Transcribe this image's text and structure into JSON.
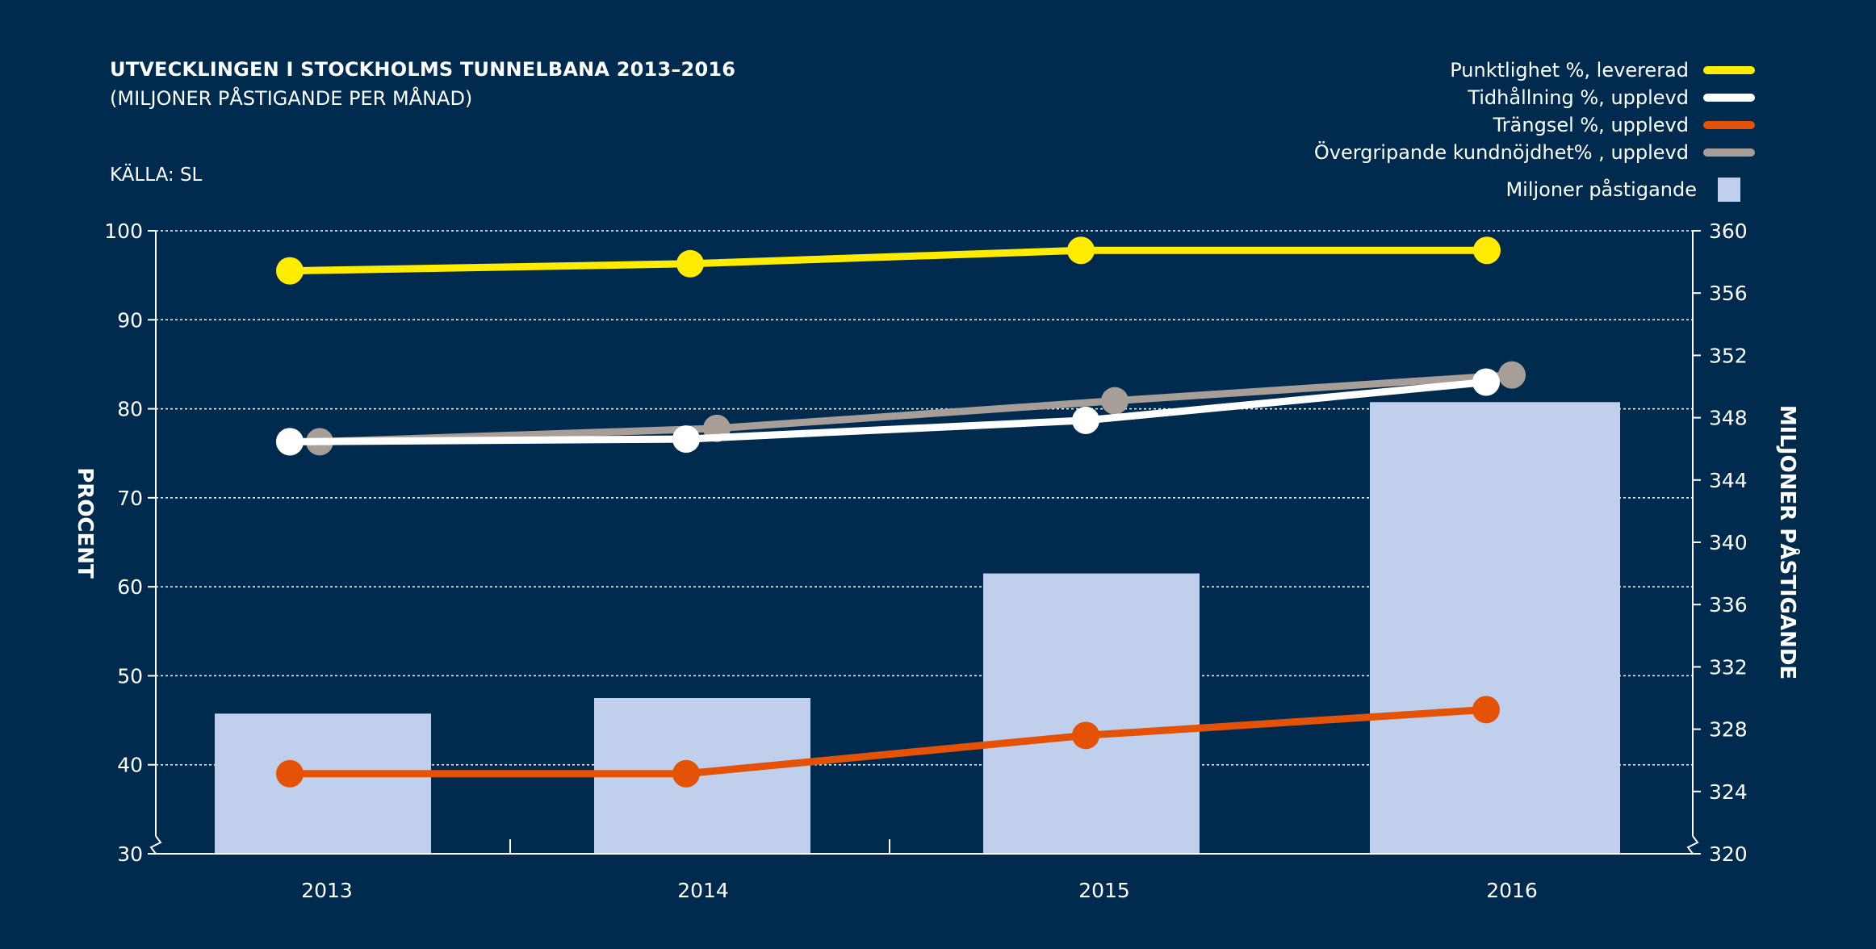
{
  "chart_data": {
    "type": "bar+line",
    "title": "UTVECKLINGEN I STOCKHOLMS TUNNELBANA 2013–2016",
    "subtitle": "(MILJONER PÅSTIGANDE PER MÅNAD)",
    "source": "KÄLLA: SL",
    "categories": [
      "2013",
      "2014",
      "2015",
      "2016"
    ],
    "y_left": {
      "label": "PROCENT",
      "min": 30,
      "max": 100,
      "ticks": [
        "30",
        "40",
        "50",
        "60",
        "70",
        "80",
        "90",
        "100"
      ]
    },
    "y_right": {
      "label": "MILJONER PÅSTIGANDE",
      "min": 320,
      "max": 360,
      "ticks": [
        "320",
        "324",
        "328",
        "332",
        "336",
        "340",
        "344",
        "348",
        "352",
        "356",
        "360"
      ]
    },
    "bars": {
      "name": "Miljoner påstigande",
      "color": "#c0cfec",
      "axis": "right",
      "values": [
        329,
        330,
        338,
        349
      ]
    },
    "series": [
      {
        "name": "Punktlighet %, levererad",
        "color": "#ffec00",
        "values": [
          95.5,
          96.3,
          97.8,
          97.8
        ]
      },
      {
        "name": "Tidhållning %, upplevd",
        "color": "#ffffff",
        "values": [
          76.3,
          76.6,
          78.7,
          83.0
        ]
      },
      {
        "name": "Trängsel %, upplevd",
        "color": "#e35206",
        "values": [
          39.0,
          39.0,
          43.3,
          46.2
        ]
      },
      {
        "name": "Övergripande kundnöjdhet% , upplevd",
        "color": "#a69e97",
        "values": [
          76.3,
          77.8,
          80.9,
          83.8
        ]
      }
    ]
  }
}
